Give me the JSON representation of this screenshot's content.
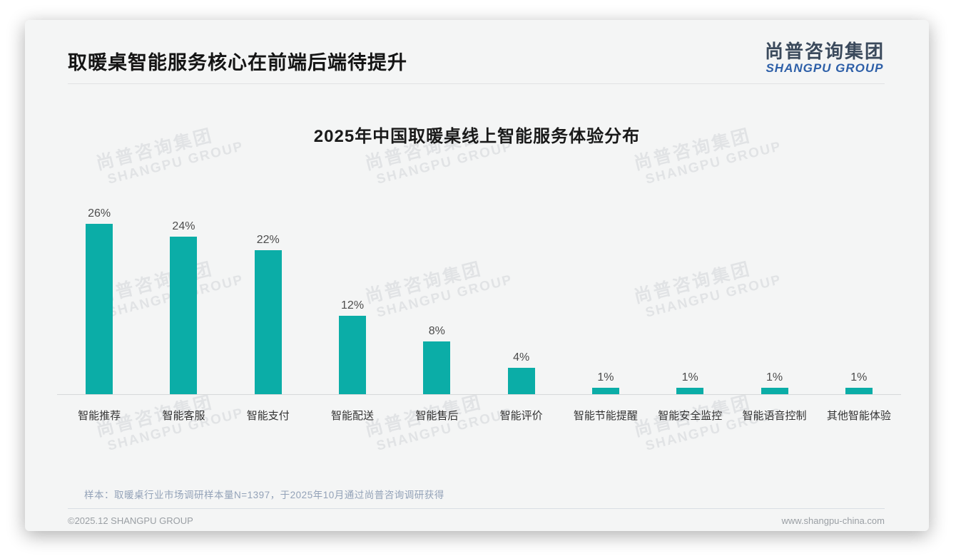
{
  "header": {
    "title": "取暖桌智能服务核心在前端后端待提升"
  },
  "logo": {
    "cn": "尚普咨询集团",
    "en": "SHANGPU GROUP"
  },
  "watermark": {
    "line1": "尚普咨询集团",
    "line2": "SHANGPU GROUP"
  },
  "chart_data": {
    "type": "bar",
    "title": "2025年中国取暖桌线上智能服务体验分布",
    "categories": [
      "智能推荐",
      "智能客服",
      "智能支付",
      "智能配送",
      "智能售后",
      "智能评价",
      "智能节能提醒",
      "智能安全监控",
      "智能语音控制",
      "其他智能体验"
    ],
    "values": [
      26,
      24,
      22,
      12,
      8,
      4,
      1,
      1,
      1,
      1
    ],
    "value_suffix": "%",
    "bar_color": "#0bada7",
    "xlabel": "",
    "ylabel": "",
    "ylim": [
      0,
      28
    ],
    "grid": false,
    "legend": "none",
    "data_labels": true
  },
  "note": "样本：取暖桌行业市场调研样本量N=1397，于2025年10月通过尚普咨询调研获得",
  "footer": {
    "left": "©2025.12 SHANGPU GROUP",
    "right": "www.shangpu-china.com"
  }
}
